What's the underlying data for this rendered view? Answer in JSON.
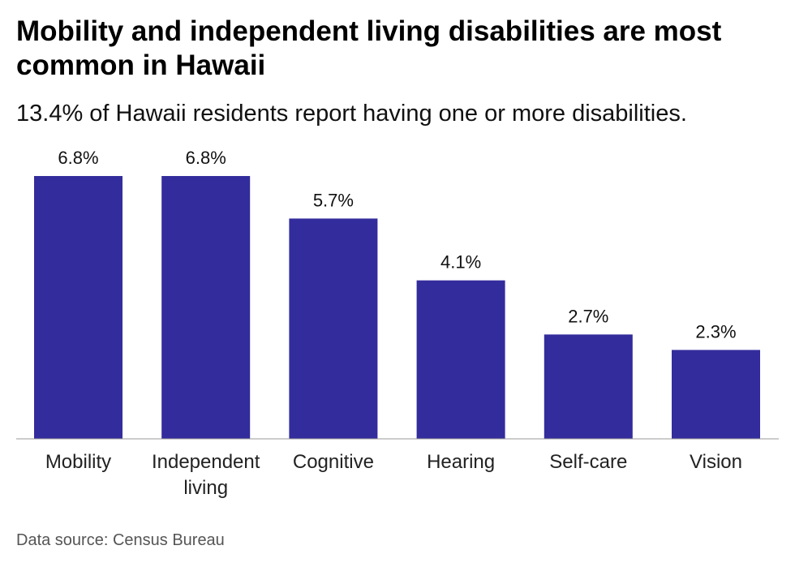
{
  "chart_data": {
    "type": "bar",
    "title": "Mobility and independent living disabilities are most common in Hawaii",
    "subtitle": "13.4% of Hawaii residents report having one or more disabilities.",
    "categories": [
      [
        "Mobility"
      ],
      [
        "Independent",
        "living"
      ],
      [
        "Cognitive"
      ],
      [
        "Hearing"
      ],
      [
        "Self-care"
      ],
      [
        "Vision"
      ]
    ],
    "values": [
      6.8,
      6.8,
      5.7,
      4.1,
      2.7,
      2.3
    ],
    "data_labels": [
      "6.8%",
      "6.8%",
      "5.7%",
      "4.1%",
      "2.7%",
      "2.3%"
    ],
    "ylim": [
      0,
      6.8
    ],
    "grid": false,
    "legend": "none",
    "bar_color": "#332c9c",
    "baseline_color": "#999999",
    "source": "Data source: Census Bureau"
  }
}
